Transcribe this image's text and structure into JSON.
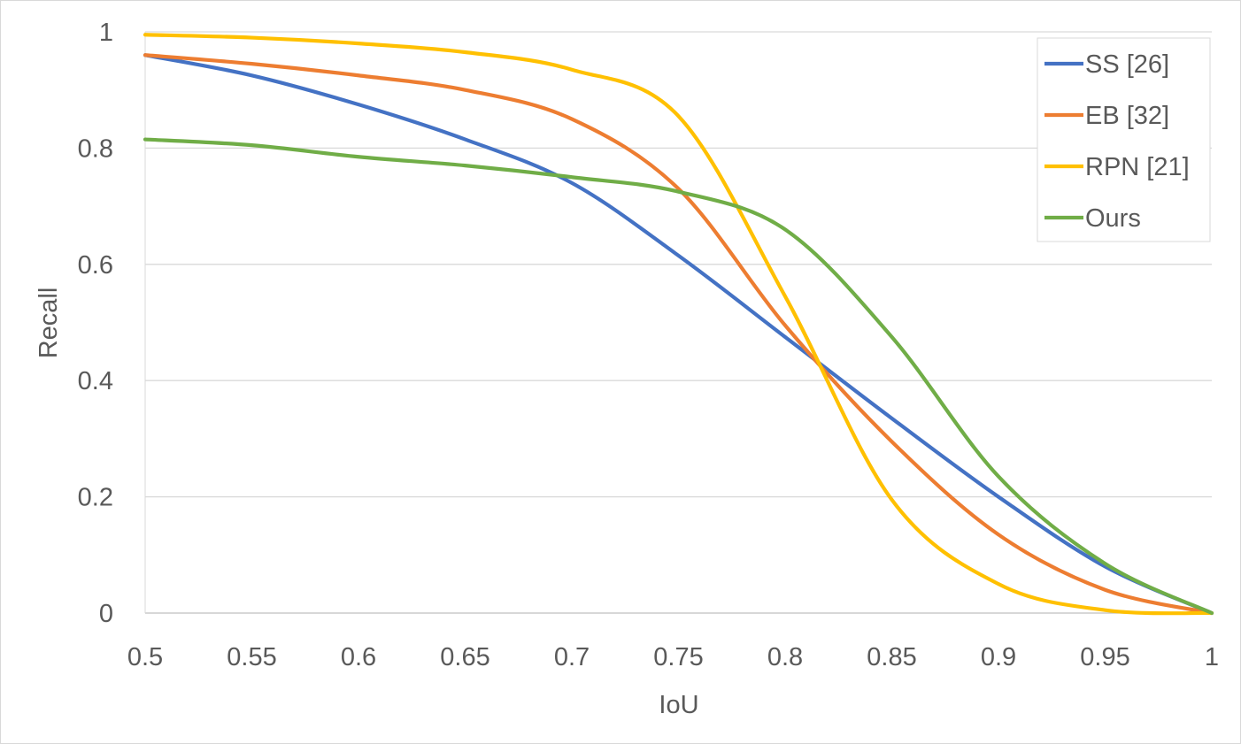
{
  "chart_data": {
    "type": "line",
    "title": "",
    "xlabel": "IoU",
    "ylabel": "Recall",
    "xlim": [
      0.5,
      1
    ],
    "ylim": [
      0,
      1
    ],
    "x_ticks": [
      "0.5",
      "0.55",
      "0.6",
      "0.65",
      "0.7",
      "0.75",
      "0.8",
      "0.85",
      "0.9",
      "0.95",
      "1"
    ],
    "y_ticks": [
      "0",
      "0.2",
      "0.4",
      "0.6",
      "0.8",
      "1"
    ],
    "x_tick_values": [
      0.5,
      0.55,
      0.6,
      0.65,
      0.7,
      0.75,
      0.8,
      0.85,
      0.9,
      0.95,
      1.0
    ],
    "y_tick_values": [
      0,
      0.2,
      0.4,
      0.6,
      0.8,
      1.0
    ],
    "grid": "horizontal",
    "legend_position": "top-right",
    "series": [
      {
        "name": "SS [26]",
        "color": "#4472C4",
        "x": [
          0.5,
          0.55,
          0.6,
          0.65,
          0.7,
          0.75,
          0.8,
          0.85,
          0.9,
          0.95,
          1.0
        ],
        "y": [
          0.96,
          0.925,
          0.875,
          0.815,
          0.74,
          0.615,
          0.475,
          0.335,
          0.2,
          0.08,
          0.0
        ]
      },
      {
        "name": "EB [32]",
        "color": "#ED7D31",
        "x": [
          0.5,
          0.55,
          0.6,
          0.65,
          0.7,
          0.75,
          0.8,
          0.85,
          0.9,
          0.95,
          1.0
        ],
        "y": [
          0.96,
          0.945,
          0.925,
          0.9,
          0.85,
          0.73,
          0.495,
          0.295,
          0.135,
          0.04,
          0.0
        ]
      },
      {
        "name": "RPN [21]",
        "color": "#FFC000",
        "x": [
          0.5,
          0.55,
          0.6,
          0.65,
          0.7,
          0.75,
          0.8,
          0.85,
          0.9,
          0.95,
          1.0
        ],
        "y": [
          0.995,
          0.99,
          0.98,
          0.965,
          0.935,
          0.855,
          0.545,
          0.195,
          0.05,
          0.005,
          0.0
        ]
      },
      {
        "name": "Ours",
        "color": "#70AD47",
        "x": [
          0.5,
          0.55,
          0.6,
          0.65,
          0.7,
          0.75,
          0.8,
          0.85,
          0.9,
          0.95,
          1.0
        ],
        "y": [
          0.815,
          0.805,
          0.785,
          0.77,
          0.75,
          0.725,
          0.66,
          0.475,
          0.235,
          0.085,
          0.0
        ]
      }
    ]
  },
  "colors": {
    "gridline": "#d9d9d9",
    "axis_text": "#595959",
    "frame_border": "#d9d9d9"
  }
}
